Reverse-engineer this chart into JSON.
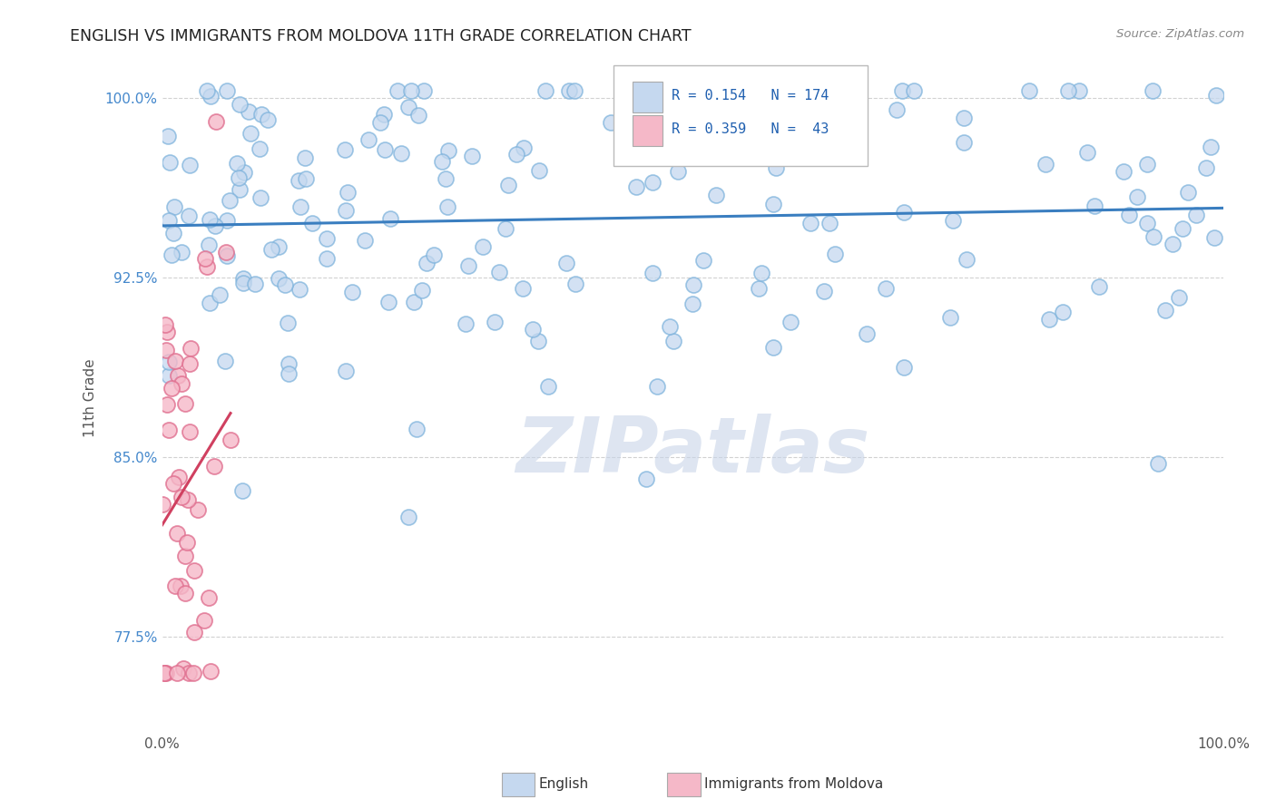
{
  "title": "ENGLISH VS IMMIGRANTS FROM MOLDOVA 11TH GRADE CORRELATION CHART",
  "source_text": "Source: ZipAtlas.com",
  "ylabel": "11th Grade",
  "watermark": "ZIPatlas",
  "xlim": [
    0.0,
    1.0
  ],
  "ylim": [
    0.735,
    1.015
  ],
  "ytick_values": [
    0.775,
    0.85,
    0.925,
    1.0
  ],
  "english_R": 0.154,
  "english_N": 174,
  "moldova_R": 0.359,
  "moldova_N": 43,
  "english_fill": "#c5d8ef",
  "english_edge": "#7eb3dc",
  "moldova_fill": "#f5b8c8",
  "moldova_edge": "#e07090",
  "english_line_color": "#3a7ec0",
  "moldova_line_color": "#d04060",
  "legend_box_eng": "#c5d8ef",
  "legend_box_mol": "#f5b8c8",
  "title_color": "#222222",
  "source_color": "#888888",
  "stat_color": "#2060b0",
  "background_color": "#ffffff",
  "grid_color": "#cccccc",
  "watermark_color": "#c8d4e8"
}
